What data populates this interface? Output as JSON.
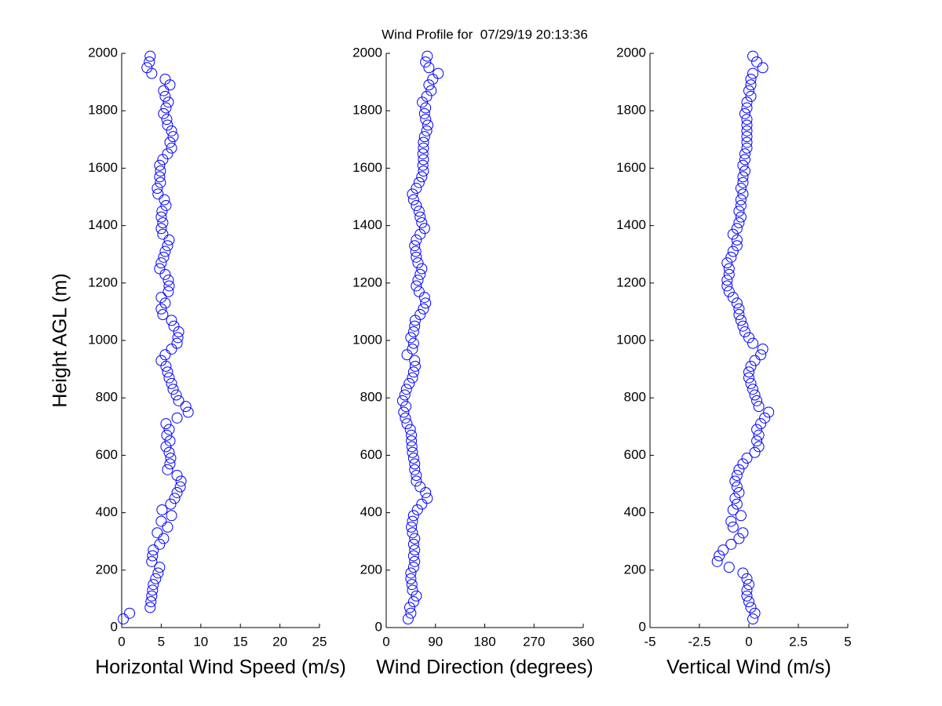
{
  "chart_data": [
    {
      "type": "scatter",
      "xlabel": "Horizontal Wind Speed (m/s)",
      "ylabel": "Height AGL (m)",
      "color": "#0000ff",
      "marker": "o",
      "xlim": [
        0,
        25
      ],
      "xticks": [
        0,
        5,
        10,
        15,
        20,
        25
      ],
      "ylim": [
        0,
        2000
      ],
      "yticks": [
        0,
        200,
        400,
        600,
        800,
        1000,
        1200,
        1400,
        1600,
        1800,
        2000
      ],
      "x": [
        0.2,
        1.0,
        3.6,
        3.7,
        3.8,
        3.9,
        4.0,
        4.3,
        4.6,
        4.8,
        3.8,
        3.9,
        4.0,
        4.8,
        5.3,
        4.5,
        5.8,
        5.0,
        6.3,
        5.1,
        6.2,
        6.7,
        7.0,
        7.4,
        7.5,
        7.0,
        5.8,
        6.1,
        6.2,
        6.0,
        5.6,
        6.1,
        5.7,
        6.0,
        5.6,
        7.0,
        8.4,
        8.1,
        7.2,
        6.9,
        6.5,
        6.3,
        6.0,
        5.8,
        5.6,
        5.0,
        5.5,
        6.3,
        7.0,
        7.1,
        7.2,
        6.6,
        6.3,
        5.2,
        5.0,
        5.5,
        5.0,
        5.9,
        6.0,
        5.9,
        5.5,
        4.8,
        5.0,
        5.3,
        5.5,
        5.8,
        6.0,
        5.2,
        5.0,
        5.2,
        5.0,
        5.1,
        5.6,
        5.4,
        4.6,
        4.5,
        4.9,
        4.8,
        4.9,
        4.8,
        5.2,
        5.8,
        6.3,
        6.1,
        6.5,
        6.3,
        5.8,
        5.7,
        5.3,
        5.6,
        5.9,
        5.5,
        5.3,
        6.1,
        5.5,
        3.8,
        3.2,
        3.5,
        3.6
      ],
      "y": [
        30,
        50,
        70,
        90,
        110,
        130,
        150,
        170,
        190,
        210,
        230,
        250,
        270,
        290,
        310,
        330,
        350,
        370,
        390,
        410,
        430,
        450,
        470,
        490,
        510,
        530,
        550,
        570,
        590,
        610,
        630,
        650,
        670,
        690,
        710,
        730,
        750,
        770,
        790,
        810,
        830,
        850,
        870,
        890,
        910,
        930,
        950,
        970,
        990,
        1010,
        1030,
        1050,
        1070,
        1090,
        1110,
        1130,
        1150,
        1170,
        1190,
        1210,
        1230,
        1250,
        1270,
        1290,
        1310,
        1330,
        1350,
        1370,
        1390,
        1410,
        1430,
        1450,
        1470,
        1490,
        1510,
        1530,
        1550,
        1570,
        1590,
        1610,
        1630,
        1650,
        1670,
        1690,
        1710,
        1730,
        1750,
        1770,
        1790,
        1810,
        1830,
        1850,
        1870,
        1890,
        1910,
        1930,
        1950,
        1970,
        1990
      ]
    },
    {
      "type": "scatter",
      "title": "Wind Profile for  07/29/19 20:13:36",
      "xlabel": "Wind Direction (degrees)",
      "color": "#0000ff",
      "marker": "o",
      "xlim": [
        0,
        360
      ],
      "xticks": [
        0,
        90,
        180,
        270,
        360
      ],
      "ylim": [
        0,
        2000
      ],
      "yticks": [
        0,
        200,
        400,
        600,
        800,
        1000,
        1200,
        1400,
        1600,
        1800,
        2000
      ],
      "x": [
        40,
        45,
        43,
        50,
        55,
        48,
        47,
        45,
        45,
        50,
        52,
        50,
        52,
        50,
        52,
        48,
        46,
        48,
        50,
        57,
        65,
        75,
        72,
        62,
        55,
        55,
        52,
        52,
        50,
        48,
        47,
        46,
        46,
        44,
        38,
        35,
        32,
        36,
        30,
        34,
        37,
        42,
        48,
        50,
        53,
        52,
        38,
        48,
        50,
        45,
        50,
        52,
        53,
        62,
        68,
        72,
        70,
        60,
        55,
        58,
        62,
        65,
        58,
        55,
        54,
        52,
        55,
        62,
        70,
        65,
        62,
        60,
        55,
        50,
        48,
        55,
        60,
        65,
        68,
        67,
        68,
        67,
        68,
        68,
        70,
        74,
        76,
        72,
        70,
        72,
        66,
        74,
        82,
        78,
        85,
        95,
        78,
        72,
        75
      ],
      "y": [
        30,
        50,
        70,
        90,
        110,
        130,
        150,
        170,
        190,
        210,
        230,
        250,
        270,
        290,
        310,
        330,
        350,
        370,
        390,
        410,
        430,
        450,
        470,
        490,
        510,
        530,
        550,
        570,
        590,
        610,
        630,
        650,
        670,
        690,
        710,
        730,
        750,
        770,
        790,
        810,
        830,
        850,
        870,
        890,
        910,
        930,
        950,
        970,
        990,
        1010,
        1030,
        1050,
        1070,
        1090,
        1110,
        1130,
        1150,
        1170,
        1190,
        1210,
        1230,
        1250,
        1270,
        1290,
        1310,
        1330,
        1350,
        1370,
        1390,
        1410,
        1430,
        1450,
        1470,
        1490,
        1510,
        1530,
        1550,
        1570,
        1590,
        1610,
        1630,
        1650,
        1670,
        1690,
        1710,
        1730,
        1750,
        1770,
        1790,
        1810,
        1830,
        1850,
        1870,
        1890,
        1910,
        1930,
        1950,
        1970,
        1990
      ]
    },
    {
      "type": "scatter",
      "xlabel": "Vertical Wind (m/s)",
      "color": "#0000ff",
      "marker": "o",
      "xlim": [
        -5,
        5
      ],
      "xticks": [
        -5,
        -2.5,
        0,
        2.5,
        5
      ],
      "ylim": [
        0,
        2000
      ],
      "yticks": [
        0,
        200,
        400,
        600,
        800,
        1000,
        1200,
        1400,
        1600,
        1800,
        2000
      ],
      "x": [
        0.2,
        0.3,
        0.1,
        0,
        -0.1,
        -0.1,
        0,
        -0.1,
        -0.3,
        -1.0,
        -1.6,
        -1.5,
        -1.3,
        -0.9,
        -0.5,
        -0.3,
        -0.8,
        -0.9,
        -0.4,
        -0.8,
        -0.6,
        -0.7,
        -0.5,
        -0.6,
        -0.7,
        -0.6,
        -0.5,
        -0.3,
        -0.1,
        0.3,
        0.5,
        0.4,
        0.5,
        0.4,
        0.6,
        0.8,
        1.0,
        0.5,
        0.4,
        0.3,
        0.2,
        0.1,
        0,
        0,
        0.1,
        0.3,
        0.6,
        0.7,
        0.2,
        0,
        -0.2,
        -0.3,
        -0.4,
        -0.5,
        -0.5,
        -0.6,
        -0.8,
        -1.0,
        -1.1,
        -1.1,
        -1.0,
        -1.0,
        -1.1,
        -0.9,
        -0.8,
        -0.6,
        -0.6,
        -0.8,
        -0.6,
        -0.5,
        -0.4,
        -0.5,
        -0.4,
        -0.4,
        -0.3,
        -0.4,
        -0.3,
        -0.3,
        -0.2,
        -0.3,
        -0.2,
        -0.2,
        -0.1,
        -0.1,
        -0.1,
        -0.1,
        -0.1,
        -0.1,
        -0.2,
        -0.1,
        -0.1,
        0.1,
        0,
        0.1,
        0.1,
        0.2,
        0.7,
        0.4,
        0.2
      ],
      "y": [
        30,
        50,
        70,
        90,
        110,
        130,
        150,
        170,
        190,
        210,
        230,
        250,
        270,
        290,
        310,
        330,
        350,
        370,
        390,
        410,
        430,
        450,
        470,
        490,
        510,
        530,
        550,
        570,
        590,
        610,
        630,
        650,
        670,
        690,
        710,
        730,
        750,
        770,
        790,
        810,
        830,
        850,
        870,
        890,
        910,
        930,
        950,
        970,
        990,
        1010,
        1030,
        1050,
        1070,
        1090,
        1110,
        1130,
        1150,
        1170,
        1190,
        1210,
        1230,
        1250,
        1270,
        1290,
        1310,
        1330,
        1350,
        1370,
        1390,
        1410,
        1430,
        1450,
        1470,
        1490,
        1510,
        1530,
        1550,
        1570,
        1590,
        1610,
        1630,
        1650,
        1670,
        1690,
        1710,
        1730,
        1750,
        1770,
        1790,
        1810,
        1830,
        1850,
        1870,
        1890,
        1910,
        1930,
        1950,
        1970,
        1990
      ]
    }
  ]
}
